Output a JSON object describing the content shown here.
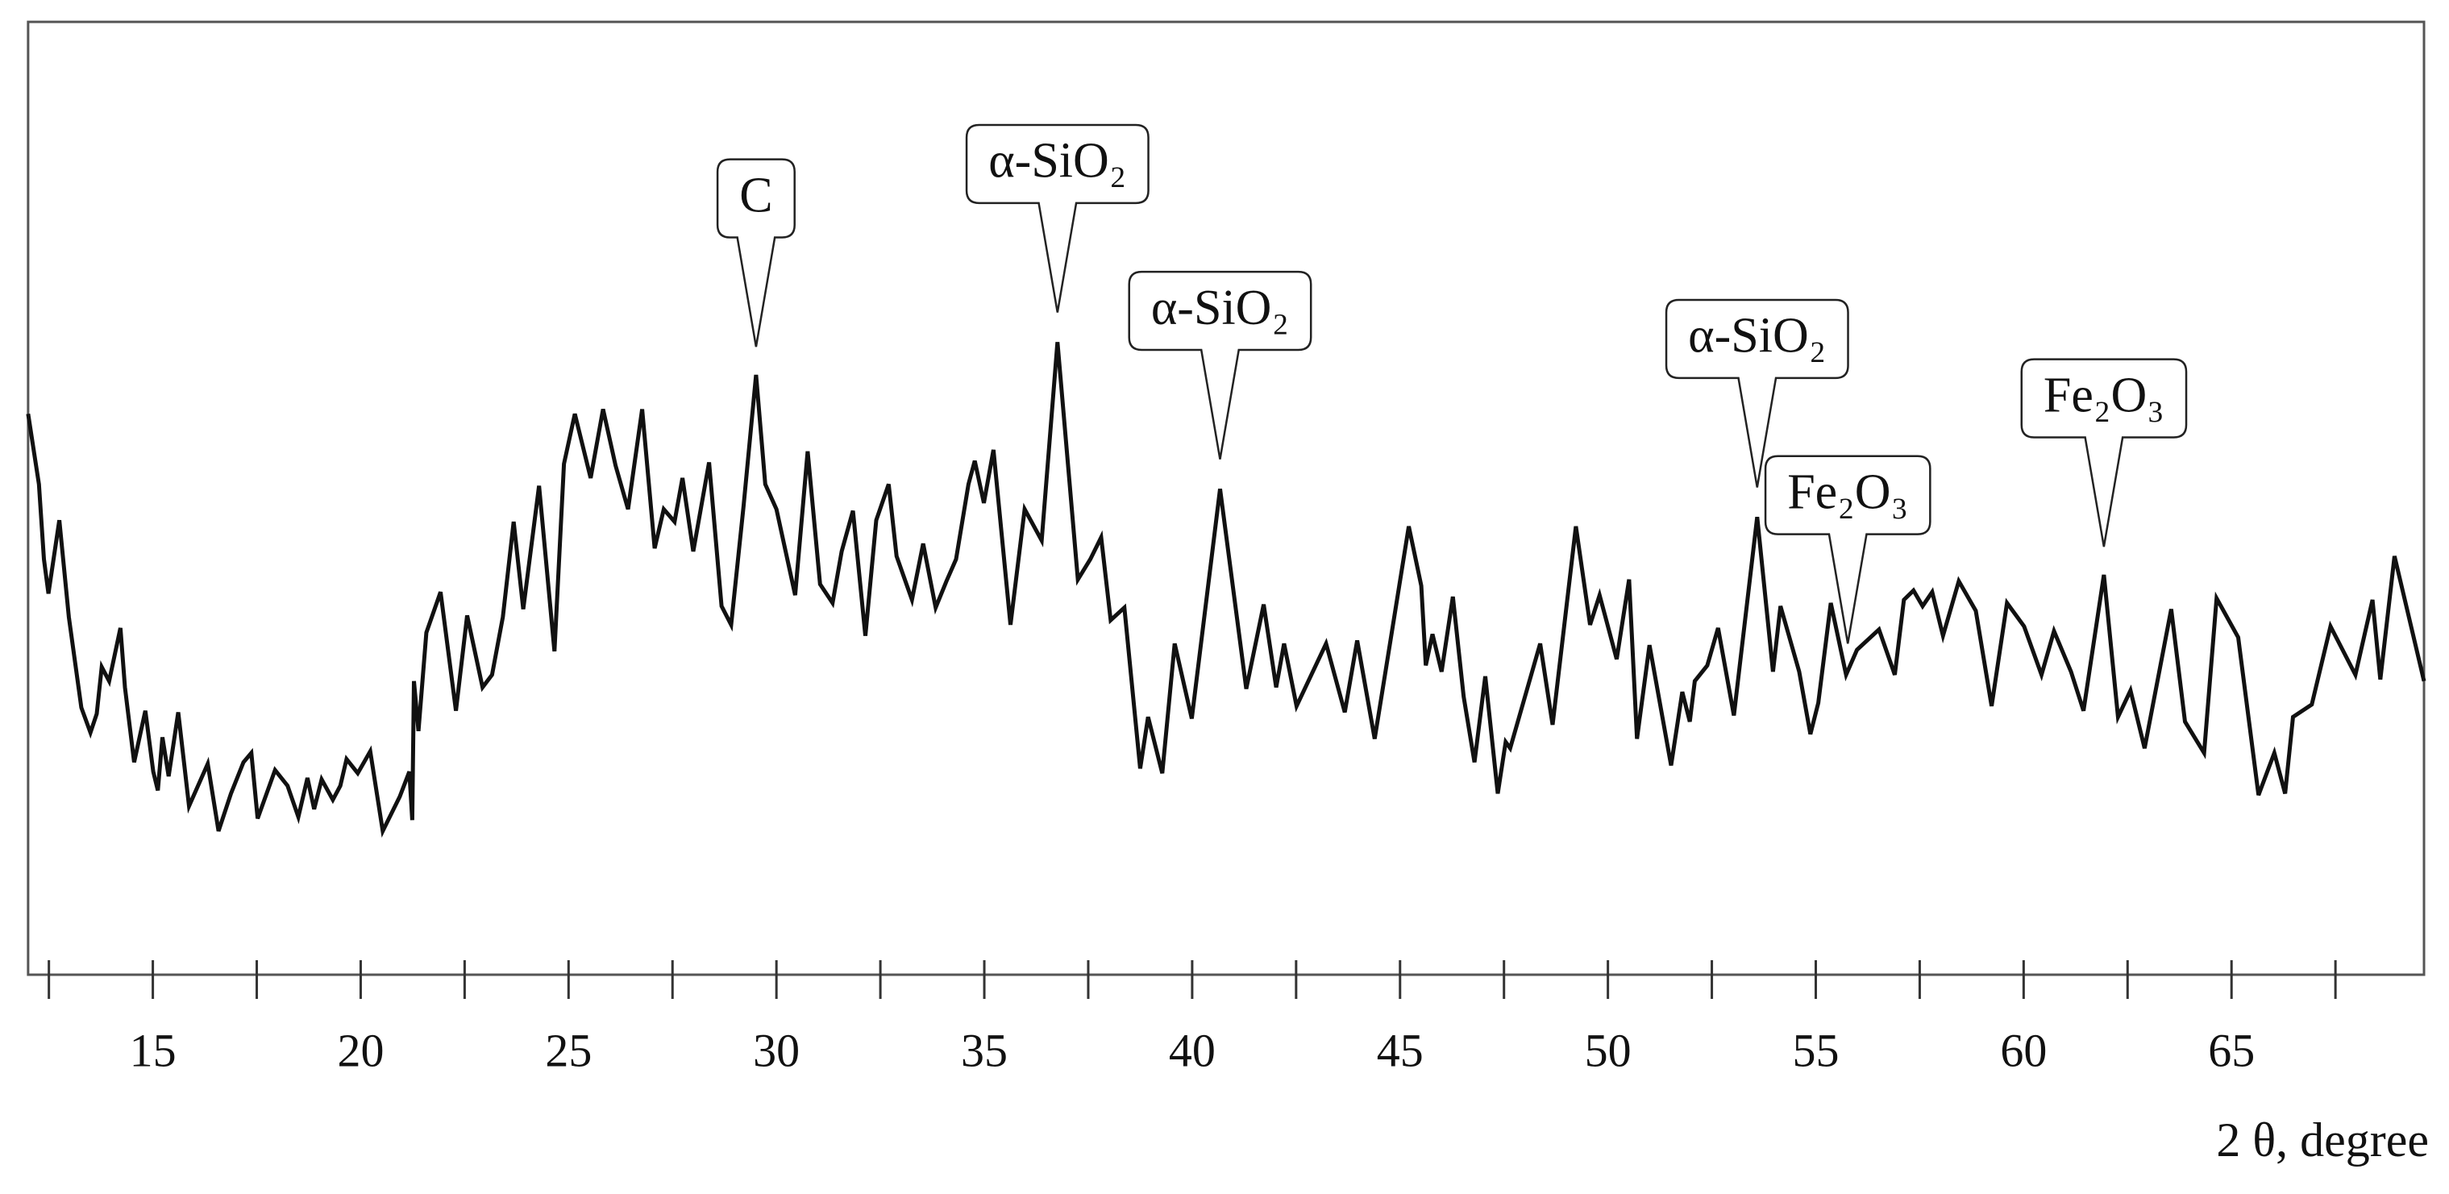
{
  "chart_data": {
    "type": "line",
    "xlabel": "2 θ, degree",
    "color": "#111111",
    "xlim": [
      12,
      69.63
    ],
    "ylim": [
      0,
      610
    ],
    "xticks": [
      15,
      20,
      25,
      30,
      35,
      40,
      45,
      50,
      55,
      60,
      65
    ],
    "xminorticks": [
      12.5,
      17.5,
      22.5,
      27.5,
      32.5,
      37.5,
      42.5,
      47.5,
      52.5,
      57.5,
      62.5,
      67.5
    ],
    "x": [
      12.0,
      12.26,
      12.38,
      12.49,
      12.75,
      12.98,
      13.28,
      13.5,
      13.65,
      13.77,
      13.95,
      14.22,
      14.33,
      14.55,
      14.82,
      15.01,
      15.12,
      15.23,
      15.38,
      15.61,
      15.87,
      16.32,
      16.58,
      16.88,
      17.18,
      17.37,
      17.52,
      17.94,
      18.24,
      18.5,
      18.72,
      18.88,
      19.06,
      19.33,
      19.51,
      19.66,
      19.93,
      20.23,
      20.53,
      20.94,
      21.17,
      21.24,
      21.28,
      21.39,
      21.58,
      21.92,
      22.29,
      22.56,
      22.93,
      23.16,
      23.42,
      23.68,
      23.91,
      24.29,
      24.66,
      24.89,
      25.15,
      25.53,
      25.83,
      26.13,
      26.43,
      26.77,
      27.07,
      27.29,
      27.55,
      27.74,
      28.0,
      28.38,
      28.68,
      28.91,
      29.21,
      29.51,
      29.73,
      30.0,
      30.45,
      30.75,
      31.05,
      31.35,
      31.57,
      31.84,
      32.14,
      32.4,
      32.7,
      32.89,
      33.26,
      33.53,
      33.83,
      34.09,
      34.32,
      34.62,
      34.77,
      34.99,
      35.22,
      35.63,
      35.97,
      36.38,
      36.76,
      37.25,
      37.55,
      37.81,
      38.04,
      38.37,
      38.75,
      38.94,
      39.28,
      39.58,
      39.99,
      40.67,
      41.3,
      41.72,
      42.02,
      42.21,
      42.51,
      43.22,
      43.67,
      43.97,
      44.39,
      44.65,
      45.21,
      45.51,
      45.62,
      45.78,
      46.0,
      46.27,
      46.53,
      46.79,
      47.05,
      47.35,
      47.54,
      47.65,
      48.37,
      48.67,
      49.23,
      49.57,
      49.8,
      50.21,
      50.51,
      50.7,
      51.0,
      51.52,
      51.79,
      51.97,
      52.09,
      52.39,
      52.65,
      53.03,
      53.59,
      53.97,
      54.15,
      54.6,
      54.87,
      55.06,
      55.36,
      55.73,
      55.99,
      56.52,
      56.9,
      57.12,
      57.35,
      57.57,
      57.8,
      58.06,
      58.44,
      58.85,
      59.23,
      59.6,
      60.01,
      60.43,
      60.73,
      61.14,
      61.44,
      61.93,
      62.27,
      62.57,
      62.91,
      63.55,
      63.88,
      64.34,
      64.64,
      65.16,
      65.65,
      66.03,
      66.29,
      66.48,
      66.93,
      67.38,
      67.98,
      68.39,
      68.58,
      68.92,
      69.63
    ],
    "values": [
      359,
      314,
      266,
      244,
      291,
      229,
      171,
      155,
      167,
      197,
      188,
      222,
      184,
      136,
      169,
      130,
      118,
      152,
      127,
      168,
      108,
      135,
      92,
      116,
      136,
      142,
      100,
      131,
      121,
      101,
      126,
      106,
      125,
      112,
      121,
      138,
      129,
      143,
      92,
      114,
      130,
      99,
      188,
      156,
      219,
      245,
      169,
      230,
      184,
      192,
      229,
      290,
      234,
      313,
      207,
      327,
      359,
      318,
      362,
      326,
      298,
      362,
      273,
      298,
      290,
      318,
      271,
      328,
      236,
      224,
      300,
      384,
      314,
      298,
      243,
      335,
      250,
      238,
      271,
      297,
      217,
      291,
      314,
      268,
      240,
      276,
      235,
      252,
      266,
      314,
      329,
      302,
      336,
      224,
      298,
      278,
      405,
      253,
      266,
      280,
      227,
      235,
      132,
      165,
      129,
      212,
      164,
      311,
      183,
      237,
      184,
      212,
      172,
      212,
      168,
      214,
      151,
      194,
      287,
      249,
      198,
      218,
      194,
      242,
      178,
      136,
      191,
      116,
      149,
      145,
      212,
      160,
      287,
      224,
      243,
      202,
      253,
      151,
      211,
      134,
      181,
      162,
      188,
      198,
      222,
      166,
      293,
      194,
      236,
      194,
      154,
      174,
      238,
      192,
      208,
      221,
      192,
      240,
      246,
      236,
      245,
      217,
      252,
      233,
      172,
      238,
      223,
      192,
      220,
      194,
      169,
      256,
      165,
      182,
      145,
      234,
      162,
      142,
      241,
      216,
      115,
      142,
      116,
      165,
      173,
      223,
      192,
      240,
      189,
      268,
      188
    ],
    "annotations": [
      {
        "text": "C",
        "x": 29.51,
        "y": 402
      },
      {
        "text": "α-SiO₂",
        "x": 36.76,
        "y": 424
      },
      {
        "text": "α-SiO₂",
        "x": 40.67,
        "y": 330
      },
      {
        "text": "α-SiO₂",
        "x": 53.59,
        "y": 312
      },
      {
        "text": "Fe₂O₃",
        "x": 55.77,
        "y": 212
      },
      {
        "text": "Fe₂O₃",
        "x": 61.93,
        "y": 274
      }
    ]
  }
}
